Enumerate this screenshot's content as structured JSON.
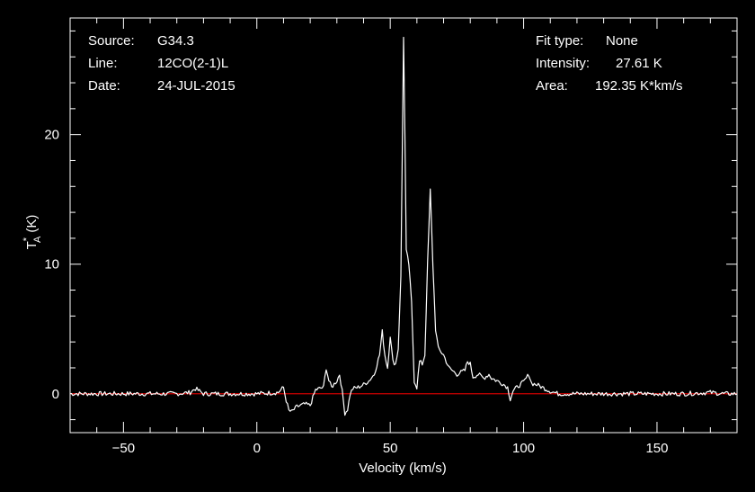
{
  "info_left": [
    {
      "key": "Source:",
      "value": "G34.3"
    },
    {
      "key": "Line:",
      "value": "12CO(2-1)L"
    },
    {
      "key": "Date:",
      "value": "24-JUL-2015"
    }
  ],
  "info_right": [
    {
      "key": "Fit type:",
      "value": "None"
    },
    {
      "key": "Intensity:",
      "value": "27.61 K"
    },
    {
      "key": "Area:",
      "value": "192.35 K*km/s"
    }
  ],
  "chart_data": {
    "type": "line",
    "title": "",
    "xlabel": "Velocity (km/s)",
    "ylabel_main": "T",
    "ylabel_super": "*",
    "ylabel_sub": "A",
    "ylabel_unit": "(K)",
    "xlim": [
      -70,
      180
    ],
    "ylim": [
      -3,
      29
    ],
    "xticks": [
      -50,
      0,
      50,
      100,
      150
    ],
    "yticks": [
      0,
      10,
      20
    ],
    "grid": false,
    "colors": {
      "background": "#000000",
      "spectrum": "#ffffff",
      "baseline": "#cc0000",
      "axes": "#ffffff"
    },
    "series": [
      {
        "x": [
          -70,
          -40,
          -30,
          -25,
          -23,
          -20,
          0,
          8,
          10,
          11,
          12,
          13,
          15,
          18,
          20,
          22,
          25,
          26,
          27,
          28,
          30,
          31,
          32,
          33,
          34,
          35,
          36,
          38,
          40,
          42,
          44,
          46,
          47,
          48,
          49,
          50,
          51,
          52,
          53,
          54,
          55,
          55.5,
          56,
          57,
          58,
          59,
          60,
          61,
          62,
          63,
          64,
          65,
          66,
          67,
          68,
          70,
          72,
          75,
          78,
          79,
          80,
          81,
          83,
          85,
          87,
          88,
          90,
          92,
          94,
          95,
          96,
          98,
          100,
          102,
          103,
          105,
          108,
          110,
          113,
          120,
          140,
          160,
          170,
          175,
          180
        ],
        "y": [
          0,
          0,
          0,
          0.1,
          0.4,
          0,
          0,
          0.1,
          0.5,
          -0.5,
          -1.3,
          -1.4,
          -1.0,
          -0.8,
          -0.9,
          0.3,
          0.5,
          2.0,
          1.0,
          0.5,
          1.0,
          1.5,
          0.2,
          -1.5,
          -1.2,
          0,
          0.4,
          0.5,
          0.7,
          1.0,
          1.5,
          3.0,
          4.8,
          3.0,
          2.0,
          4.5,
          2.5,
          2.3,
          3.5,
          9.0,
          27.6,
          20.0,
          11.0,
          10.0,
          7.0,
          1.0,
          0.5,
          2.5,
          2.3,
          3.0,
          10.0,
          15.7,
          10.0,
          5.0,
          3.5,
          3.0,
          2.0,
          1.5,
          1.8,
          2.5,
          2.3,
          1.3,
          1.5,
          1.2,
          1.5,
          1.2,
          1.0,
          0.8,
          0.5,
          -0.4,
          0.2,
          0.6,
          0.9,
          1.5,
          0.8,
          0.7,
          0.4,
          0.2,
          0,
          0,
          0,
          0,
          0.1,
          0,
          0
        ]
      }
    ]
  }
}
